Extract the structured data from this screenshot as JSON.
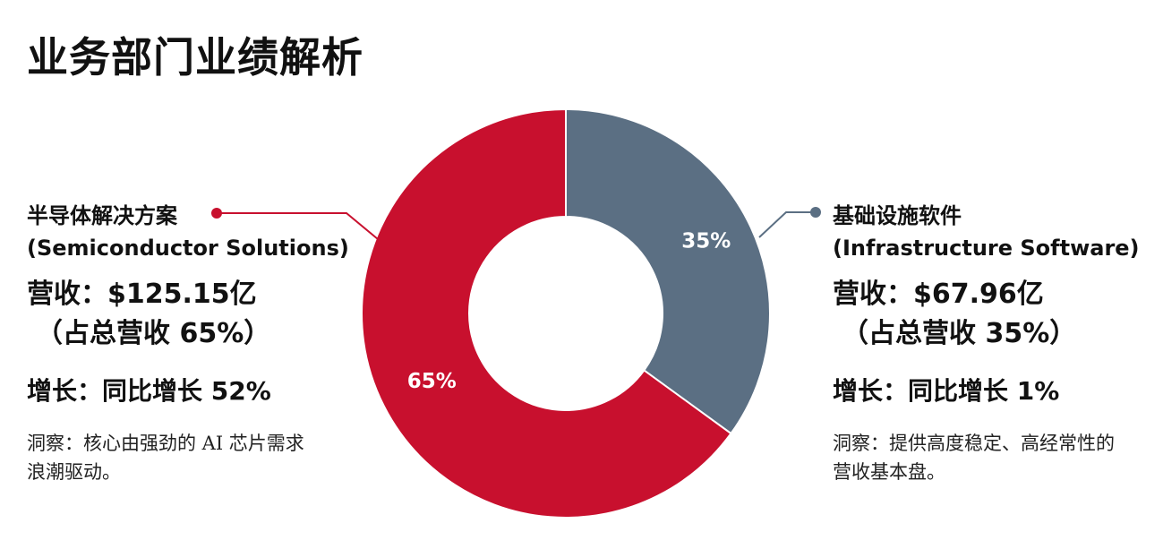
{
  "title": "业务部门业绩解析",
  "colors": {
    "semiconductor": "#c8102e",
    "software": "#5b6f83"
  },
  "segments": {
    "left": {
      "name_zh": "半导体解决方案",
      "name_en": "(Semiconductor Solutions)",
      "revenue": "营收：$125.15亿",
      "share_text": "（占总营收 65%）",
      "growth": "增长：同比增长 52%",
      "insight": "洞察：核心由强劲的 AI 芯片需求浪潮驱动。"
    },
    "right": {
      "name_zh": "基础设施软件",
      "name_en": "(Infrastructure Software)",
      "revenue": "营收：$67.96亿",
      "share_text": "（占总营收 35%）",
      "growth": "增长：同比增长 1%",
      "insight": "洞察：提供高度稳定、高经常性的营收基本盘。"
    }
  },
  "chart_data": {
    "type": "pie",
    "donut": true,
    "title": "",
    "slices": [
      {
        "label": "基础设施软件",
        "value": 35,
        "display": "35%",
        "color": "#5b6f83"
      },
      {
        "label": "半导体解决方案",
        "value": 65,
        "display": "65%",
        "color": "#c8102e"
      }
    ]
  }
}
